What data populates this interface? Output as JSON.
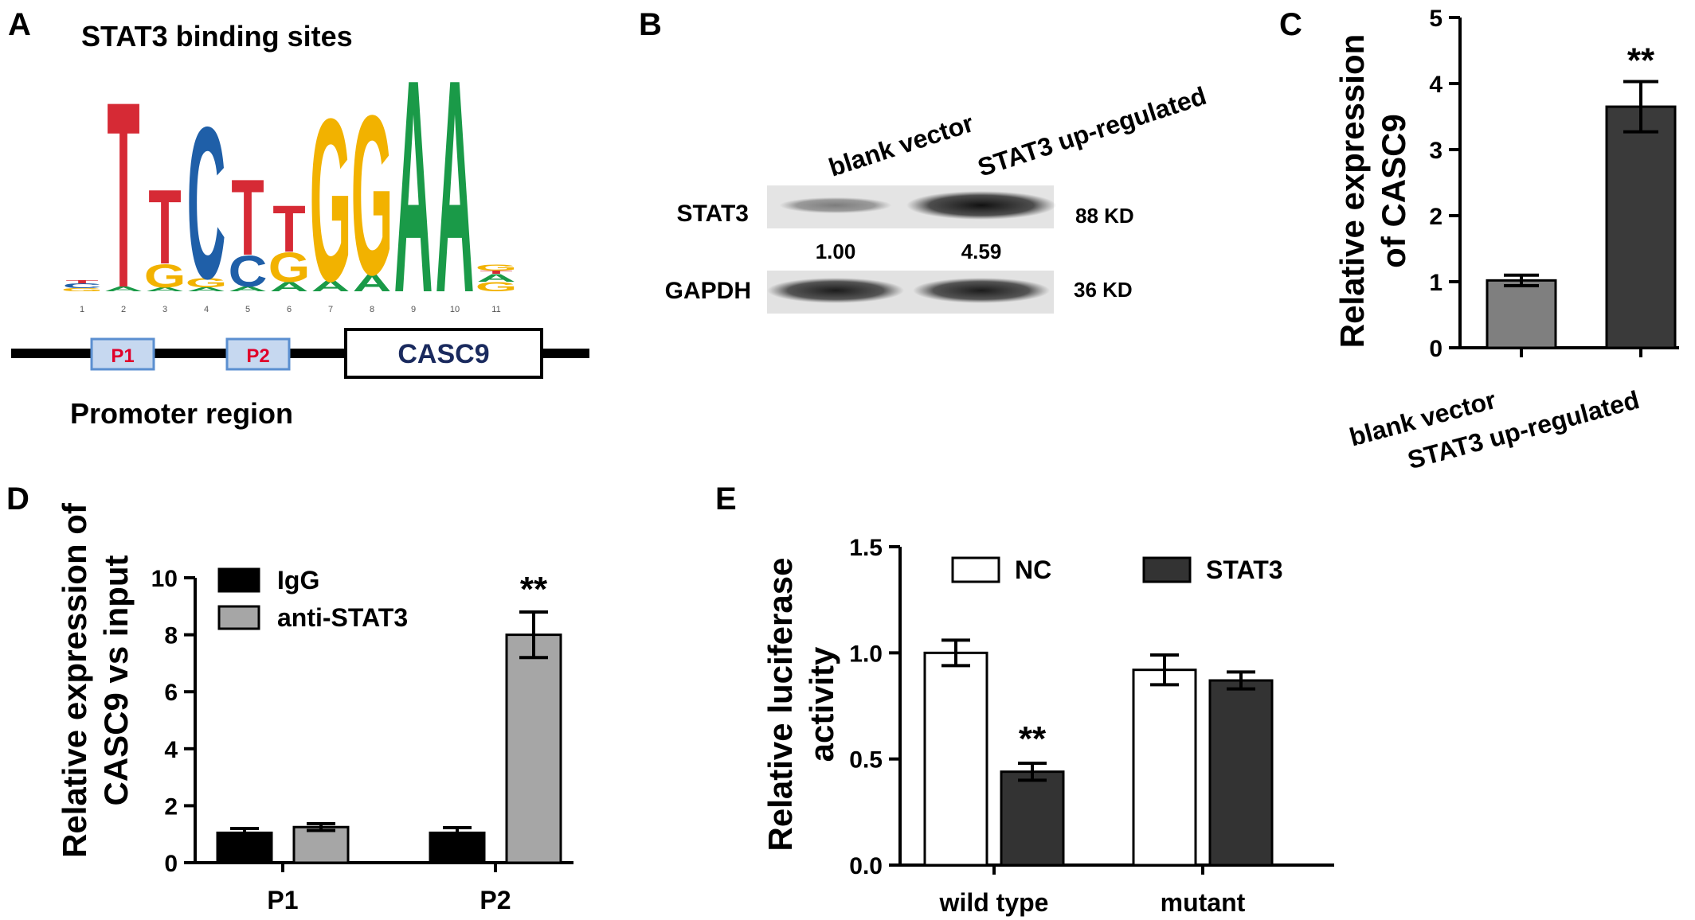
{
  "panels": {
    "A": {
      "letter": "A",
      "title": "STAT3 binding sites",
      "positions": [
        "1",
        "2",
        "3",
        "4",
        "5",
        "6",
        "7",
        "8",
        "9",
        "10",
        "11"
      ],
      "regions": {
        "p1": "P1",
        "p2": "P2",
        "gene": "CASC9"
      },
      "promoter_label": "Promoter region",
      "colors": {
        "A": "#1a9a48",
        "C": "#1f5fa8",
        "G": "#f2b200",
        "T": "#d62a35",
        "label_red": "#e0002a",
        "gene_text": "#1a2a5e"
      }
    },
    "B": {
      "letter": "B",
      "col1": "blank vector",
      "col2": "STAT3 up-regulated",
      "row1": "STAT3",
      "row2": "GAPDH",
      "size1": "88 KD",
      "size2": "36 KD",
      "q1": "1.00",
      "q2": "4.59",
      "band_intensity": {
        "STAT3": [
          1.0,
          4.59
        ]
      }
    },
    "C": {
      "letter": "C",
      "ylabel_line1": "Relative expression",
      "ylabel_line2": "of CASC9",
      "sig": "**"
    },
    "D": {
      "letter": "D",
      "ylabel_line1": "Relative expression of",
      "ylabel_line2": "CASC9 vs input",
      "sig": "**"
    },
    "E": {
      "letter": "E",
      "ylabel_line1": "Relative luciferase",
      "ylabel_line2": "activity",
      "sig": "**"
    }
  },
  "chart_data": [
    {
      "panel": "C",
      "type": "bar",
      "categories": [
        "blank vector",
        "STAT3 up-regulated"
      ],
      "values": [
        1.02,
        3.65
      ],
      "errors": [
        0.08,
        0.38
      ],
      "ylabel": "Relative expression of CASC9",
      "ylim": [
        0,
        5
      ],
      "yticks": [
        "0",
        "1",
        "2",
        "3",
        "4",
        "5"
      ],
      "colors": [
        "#7f7f7f",
        "#3a3a3a"
      ],
      "significance": [
        "",
        "**"
      ]
    },
    {
      "panel": "D",
      "type": "bar",
      "categories": [
        "P1",
        "P2"
      ],
      "series": [
        {
          "name": "IgG",
          "values": [
            1.05,
            1.05
          ],
          "errors": [
            0.15,
            0.18
          ],
          "color": "#000000"
        },
        {
          "name": "anti-STAT3",
          "values": [
            1.25,
            8.0
          ],
          "errors": [
            0.12,
            0.8
          ],
          "color": "#a6a6a6"
        }
      ],
      "ylabel": "Relative expression of CASC9 vs input",
      "ylim": [
        0,
        10
      ],
      "yticks": [
        "0",
        "2",
        "4",
        "6",
        "8",
        "10"
      ],
      "significance": [
        "",
        "",
        "",
        "**"
      ],
      "legend": "top-left"
    },
    {
      "panel": "E",
      "type": "bar",
      "categories": [
        "wild type",
        "mutant"
      ],
      "series": [
        {
          "name": "NC",
          "values": [
            1.0,
            0.92
          ],
          "errors": [
            0.06,
            0.07
          ],
          "color": "#ffffff"
        },
        {
          "name": "STAT3",
          "values": [
            0.44,
            0.87
          ],
          "errors": [
            0.04,
            0.04
          ],
          "color": "#333333"
        }
      ],
      "ylabel": "Relative luciferase activity",
      "ylim": [
        0,
        1.5
      ],
      "yticks": [
        "0.0",
        "0.5",
        "1.0",
        "1.5"
      ],
      "significance": [
        "",
        "**",
        "",
        ""
      ],
      "legend": "top"
    }
  ]
}
